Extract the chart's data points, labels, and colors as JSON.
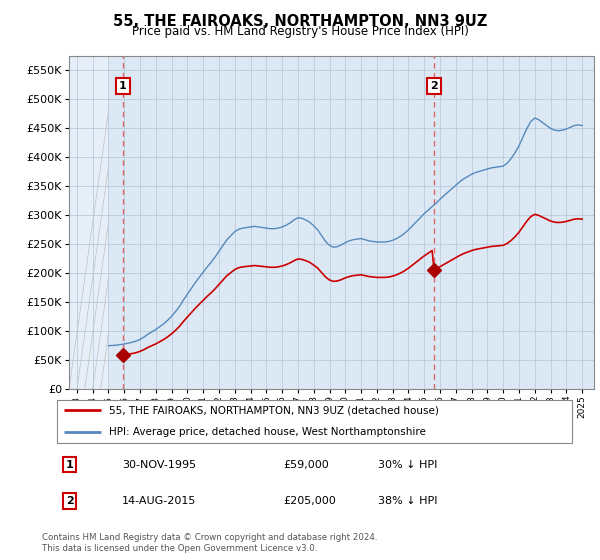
{
  "title": "55, THE FAIROAKS, NORTHAMPTON, NN3 9UZ",
  "subtitle": "Price paid vs. HM Land Registry's House Price Index (HPI)",
  "background_color": "#ffffff",
  "plot_bg_color": "#dce9f5",
  "grid_color": "#b0c4d8",
  "year_start": 1993,
  "year_end": 2025,
  "ylim": [
    0,
    575000
  ],
  "yticks": [
    0,
    50000,
    100000,
    150000,
    200000,
    250000,
    300000,
    350000,
    400000,
    450000,
    500000,
    550000
  ],
  "transaction1_date": 1995.92,
  "transaction1_price": 59000,
  "transaction1_label": "1",
  "transaction2_date": 2015.62,
  "transaction2_price": 205000,
  "transaction2_label": "2",
  "hpi_color": "#5588bb",
  "sold_color": "#cc0000",
  "sold_dot_color": "#aa0000",
  "vline_color": "#dd6666",
  "legend_line1": "55, THE FAIROAKS, NORTHAMPTON, NN3 9UZ (detached house)",
  "legend_line2": "HPI: Average price, detached house, West Northamptonshire",
  "note1_num": "1",
  "note1_date": "30-NOV-1995",
  "note1_price": "£59,000",
  "note1_pct": "30% ↓ HPI",
  "note2_num": "2",
  "note2_date": "14-AUG-2015",
  "note2_price": "£205,000",
  "note2_pct": "38% ↓ HPI",
  "copyright": "Contains HM Land Registry data © Crown copyright and database right 2024.\nThis data is licensed under the Open Government Licence v3.0.",
  "hpi_years": [
    1995.0,
    1995.25,
    1995.5,
    1995.75,
    1996.0,
    1996.25,
    1996.5,
    1996.75,
    1997.0,
    1997.25,
    1997.5,
    1997.75,
    1998.0,
    1998.25,
    1998.5,
    1998.75,
    1999.0,
    1999.25,
    1999.5,
    1999.75,
    2000.0,
    2000.25,
    2000.5,
    2000.75,
    2001.0,
    2001.25,
    2001.5,
    2001.75,
    2002.0,
    2002.25,
    2002.5,
    2002.75,
    2003.0,
    2003.25,
    2003.5,
    2003.75,
    2004.0,
    2004.25,
    2004.5,
    2004.75,
    2005.0,
    2005.25,
    2005.5,
    2005.75,
    2006.0,
    2006.25,
    2006.5,
    2006.75,
    2007.0,
    2007.25,
    2007.5,
    2007.75,
    2008.0,
    2008.25,
    2008.5,
    2008.75,
    2009.0,
    2009.25,
    2009.5,
    2009.75,
    2010.0,
    2010.25,
    2010.5,
    2010.75,
    2011.0,
    2011.25,
    2011.5,
    2011.75,
    2012.0,
    2012.25,
    2012.5,
    2012.75,
    2013.0,
    2013.25,
    2013.5,
    2013.75,
    2014.0,
    2014.25,
    2014.5,
    2014.75,
    2015.0,
    2015.25,
    2015.5,
    2015.75,
    2016.0,
    2016.25,
    2016.5,
    2016.75,
    2017.0,
    2017.25,
    2017.5,
    2017.75,
    2018.0,
    2018.25,
    2018.5,
    2018.75,
    2019.0,
    2019.25,
    2019.5,
    2019.75,
    2020.0,
    2020.25,
    2020.5,
    2020.75,
    2021.0,
    2021.25,
    2021.5,
    2021.75,
    2022.0,
    2022.25,
    2022.5,
    2022.75,
    2023.0,
    2023.25,
    2023.5,
    2023.75,
    2024.0,
    2024.25,
    2024.5,
    2024.75,
    2025.0
  ],
  "hpi_values": [
    75000,
    75500,
    76000,
    77000,
    78000,
    79500,
    81000,
    83000,
    86000,
    90000,
    95000,
    99000,
    103000,
    108000,
    113000,
    119000,
    126000,
    134000,
    143000,
    154000,
    164000,
    174000,
    184000,
    193000,
    202000,
    211000,
    219000,
    228000,
    238000,
    248000,
    258000,
    265000,
    272000,
    276000,
    278000,
    279000,
    280000,
    281000,
    280000,
    279000,
    278000,
    277000,
    277000,
    278000,
    280000,
    283000,
    287000,
    292000,
    296000,
    295000,
    292000,
    288000,
    282000,
    275000,
    265000,
    255000,
    248000,
    245000,
    246000,
    249000,
    253000,
    256000,
    258000,
    259000,
    260000,
    258000,
    256000,
    255000,
    254000,
    254000,
    254000,
    255000,
    257000,
    260000,
    264000,
    269000,
    275000,
    282000,
    289000,
    296000,
    303000,
    309000,
    315000,
    321000,
    328000,
    334000,
    340000,
    346000,
    352000,
    358000,
    363000,
    367000,
    371000,
    374000,
    376000,
    378000,
    380000,
    382000,
    383000,
    384000,
    385000,
    390000,
    398000,
    408000,
    420000,
    435000,
    450000,
    462000,
    468000,
    465000,
    460000,
    455000,
    450000,
    447000,
    446000,
    447000,
    449000,
    452000,
    455000,
    456000,
    455000
  ]
}
